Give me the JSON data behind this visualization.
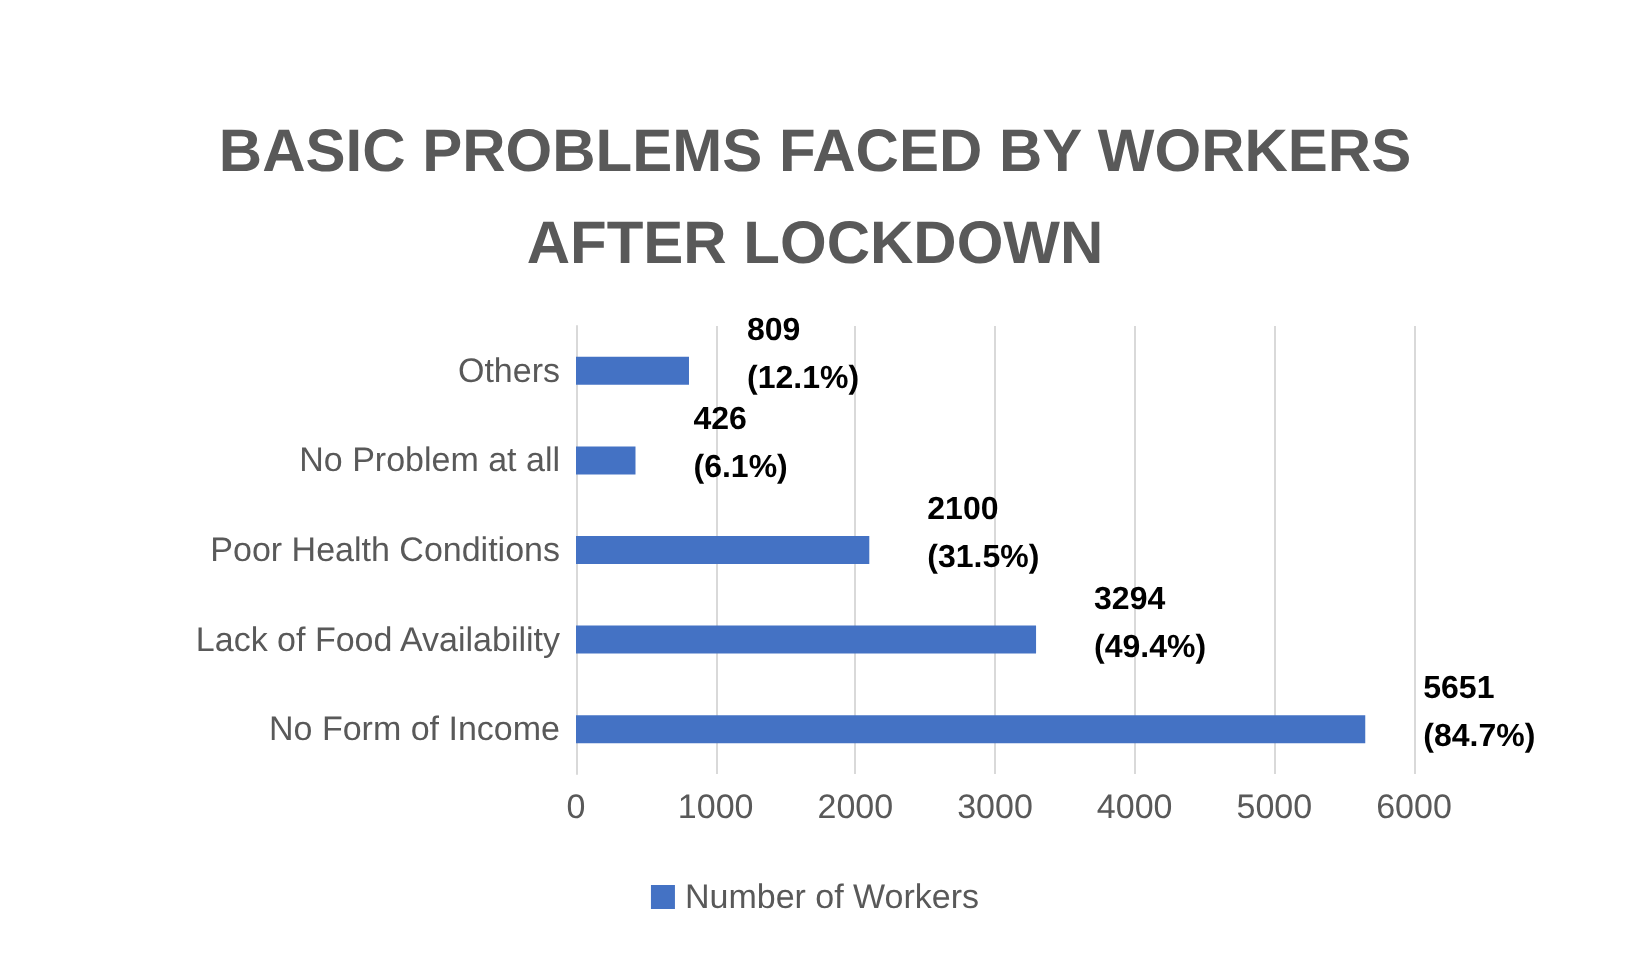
{
  "chart_data": {
    "type": "bar",
    "orientation": "horizontal",
    "title": "BASIC PROBLEMS FACED BY WORKERS\nAFTER LOCKDOWN",
    "categories": [
      "Others",
      "No Problem at all",
      "Poor Health Conditions",
      "Lack of Food Availability",
      "No Form of Income"
    ],
    "series": [
      {
        "name": "Number of Workers",
        "color": "#4472c4",
        "values": [
          809,
          426,
          2100,
          3294,
          5651
        ],
        "value_labels": [
          "809\n(12.1%)",
          "426\n(6.1%)",
          "2100\n(31.5%)",
          "3294\n(49.4%)",
          "5651\n(84.7%)"
        ]
      }
    ],
    "xlim": [
      0,
      6000
    ],
    "xticks": [
      0,
      1000,
      2000,
      3000,
      4000,
      5000,
      6000
    ],
    "grid": "x",
    "legend": "bottom"
  }
}
